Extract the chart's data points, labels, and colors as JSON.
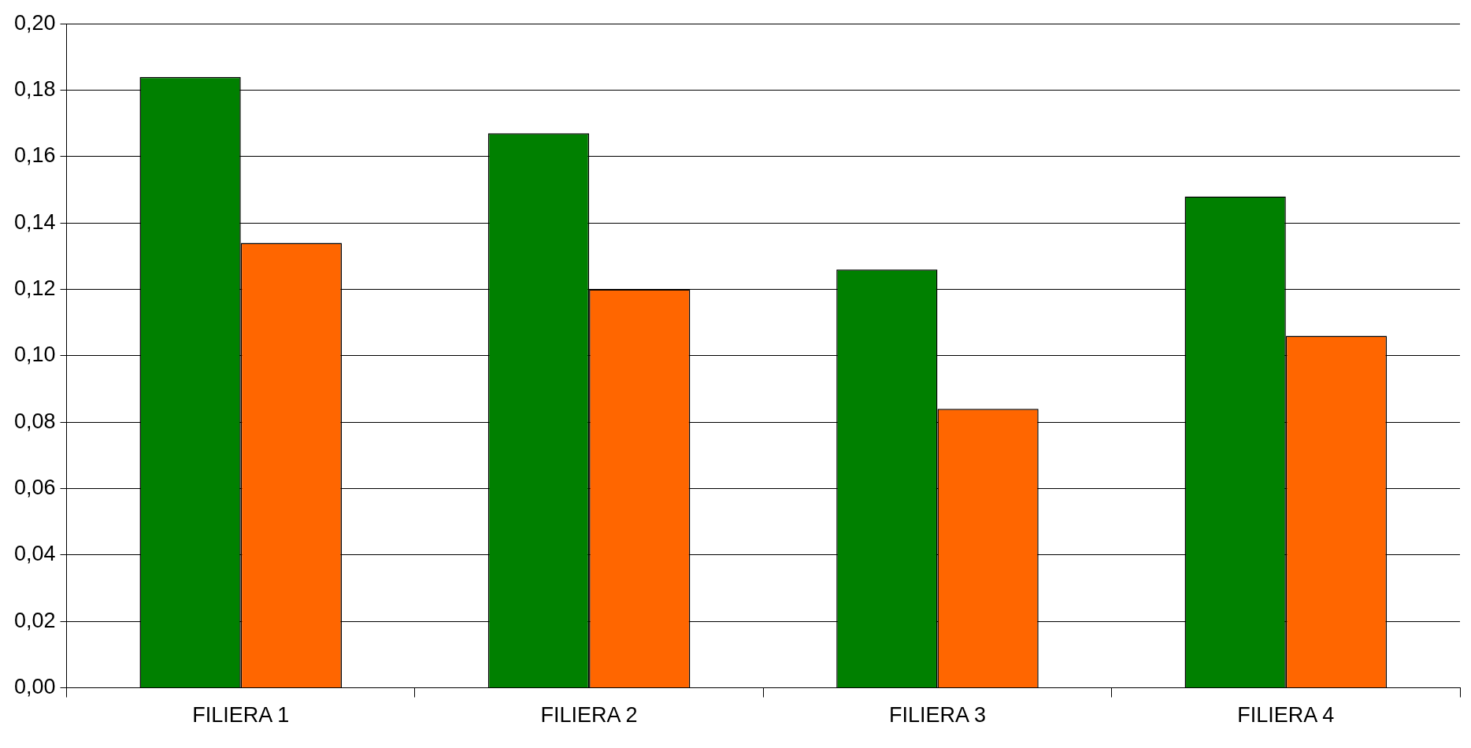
{
  "chart_data": {
    "type": "bar",
    "categories": [
      "FILIERA 1",
      "FILIERA 2",
      "FILIERA 3",
      "FILIERA 4"
    ],
    "series": [
      {
        "color": "#008000",
        "values": [
          0.184,
          0.167,
          0.126,
          0.148
        ]
      },
      {
        "color": "#ff6600",
        "values": [
          0.134,
          0.12,
          0.084,
          0.106
        ]
      }
    ],
    "ylim": [
      0,
      0.2
    ],
    "yticks": [
      {
        "value": 0,
        "label": "0,00"
      },
      {
        "value": 0.02,
        "label": "0,02"
      },
      {
        "value": 0.04,
        "label": "0,04"
      },
      {
        "value": 0.06,
        "label": "0,06"
      },
      {
        "value": 0.08,
        "label": "0,08"
      },
      {
        "value": 0.1,
        "label": "0,10"
      },
      {
        "value": 0.12,
        "label": "0,12"
      },
      {
        "value": 0.14,
        "label": "0,14"
      },
      {
        "value": 0.16,
        "label": "0,16"
      },
      {
        "value": 0.18,
        "label": "0,18"
      },
      {
        "value": 0.2,
        "label": "0,20"
      }
    ],
    "grid": "y",
    "legend": false
  }
}
